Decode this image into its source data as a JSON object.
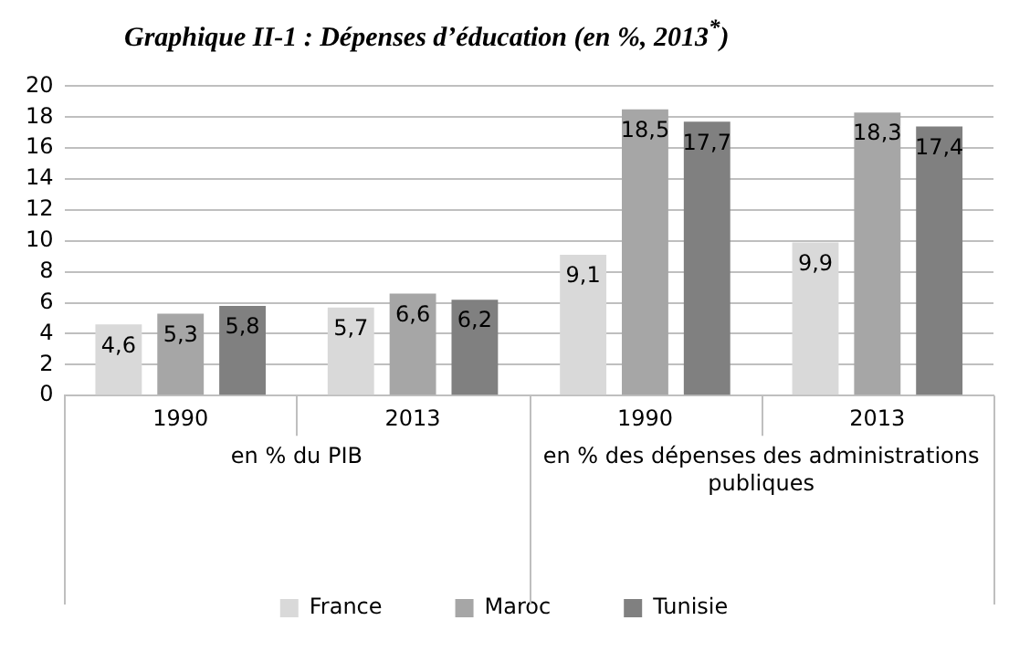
{
  "chart_data": {
    "type": "bar",
    "title": "Graphique II-1 : Dépenses d’éducation (en %, 2013$^{*}$)",
    "categories": [
      "1990",
      "2013",
      "1990",
      "2013"
    ],
    "series": [
      {
        "name": "France",
        "color": "#d9d9d9",
        "values": [
          4.6,
          5.7,
          9.1,
          9.9
        ]
      },
      {
        "name": "Maroc",
        "color": "#a6a6a6",
        "values": [
          5.3,
          6.6,
          18.5,
          18.3
        ]
      },
      {
        "name": "Tunisie",
        "color": "#808080",
        "values": [
          5.8,
          6.2,
          17.7,
          17.4
        ]
      }
    ],
    "value_labels": [
      [
        "4,6",
        "5,7",
        "9,1",
        "9,9"
      ],
      [
        "5,3",
        "6,6",
        "18,5",
        "18,3"
      ],
      [
        "5,8",
        "6,2",
        "17,7",
        "17,4"
      ]
    ],
    "annotations": [
      "en % du PIB",
      "en % des dépenses des administrations publiques"
    ],
    "ylim": [
      0,
      20
    ],
    "yticks": [
      0,
      2,
      4,
      6,
      8,
      10,
      12,
      14,
      16,
      18,
      20
    ],
    "grid": "y",
    "legend": "bottom"
  }
}
